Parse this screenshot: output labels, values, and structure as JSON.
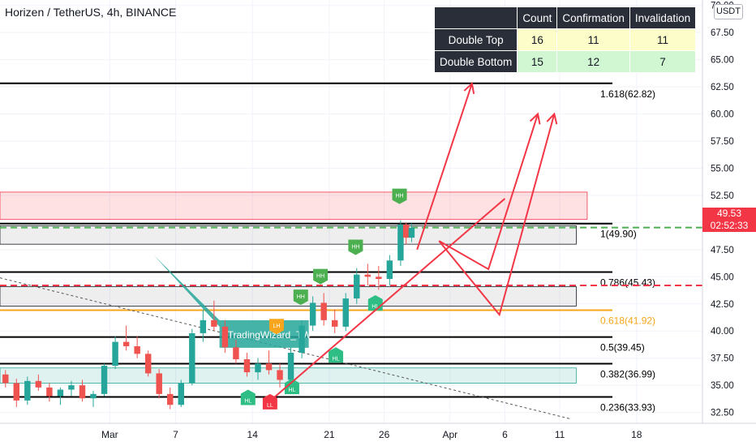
{
  "header": {
    "title": "Horizen / TetherUS, 4h, BINANCE"
  },
  "currency_badge": "USDT",
  "stats_table": {
    "headers": [
      "",
      "Count",
      "Confirmation",
      "Invalidation"
    ],
    "rows": [
      {
        "label": "Double Top",
        "count": "16",
        "confirmation": "11",
        "invalidation": "11"
      },
      {
        "label": "Double Bottom",
        "count": "15",
        "confirmation": "12",
        "invalidation": "7"
      }
    ]
  },
  "last_price": {
    "price": "49.53",
    "countdown": "02:52:33"
  },
  "watermark": "TradingWizard_TW",
  "chart_data": {
    "type": "candlestick",
    "title": "Horizen / TetherUS, 4h, BINANCE",
    "y_range": [
      31.5,
      70.5
    ],
    "y_ticks": [
      "32.50",
      "35.00",
      "37.50",
      "40.00",
      "42.50",
      "45.00",
      "47.50",
      "50.00",
      "52.50",
      "55.00",
      "57.50",
      "60.00",
      "62.50",
      "65.00",
      "67.50",
      "70.00"
    ],
    "x_ticks": [
      {
        "label": "Mar",
        "day": 0
      },
      {
        "label": "7",
        "day": 6
      },
      {
        "label": "14",
        "day": 13
      },
      {
        "label": "21",
        "day": 20
      },
      {
        "label": "26",
        "day": 25
      },
      {
        "label": "Apr",
        "day": 31
      },
      {
        "label": "6",
        "day": 36
      },
      {
        "label": "11",
        "day": 41
      },
      {
        "label": "18",
        "day": 48
      }
    ],
    "x_range_days": [
      -10,
      54
    ],
    "fib_levels": [
      {
        "label": "1(49.90)",
        "value": 49.9,
        "color": "#000000"
      },
      {
        "label": "0.786(45.43)",
        "value": 45.43,
        "color": "#000000"
      },
      {
        "label": "0.618(41.92)",
        "value": 41.92,
        "color": "#f7a51c"
      },
      {
        "label": "0.5(39.45)",
        "value": 39.45,
        "color": "#000000"
      },
      {
        "label": "0.382(36.99)",
        "value": 36.99,
        "color": "#000000"
      },
      {
        "label": "0.236(33.93)",
        "value": 33.93,
        "color": "#000000"
      },
      {
        "label": "1.618(62.82)",
        "value": 62.82,
        "color": "#000000"
      }
    ],
    "zones": [
      {
        "name": "resistance",
        "from": 50.3,
        "to": 52.8,
        "x_from": -10,
        "x_to": 43.5,
        "fill": "rgba(242,54,69,0.15)",
        "stroke": "#f23645"
      },
      {
        "name": "supply",
        "from": 48.0,
        "to": 49.7,
        "x_from": -10,
        "x_to": 42.5,
        "fill": "rgba(120,123,134,0.13)",
        "stroke": "#131722"
      },
      {
        "name": "mid",
        "from": 42.3,
        "to": 44.1,
        "x_from": -10,
        "x_to": 42.5,
        "fill": "rgba(120,123,134,0.13)",
        "stroke": "#131722"
      },
      {
        "name": "demand",
        "from": 35.2,
        "to": 36.6,
        "x_from": -10,
        "x_to": 42.5,
        "fill": "rgba(38,166,154,0.15)",
        "stroke": "#26a69a"
      }
    ],
    "current_price": 49.53,
    "entry_line": 44.2,
    "candles": [
      [
        -9.5,
        36.0,
        36.4,
        34.8,
        35.2
      ],
      [
        -8.5,
        35.2,
        35.6,
        33.0,
        33.6
      ],
      [
        -7.5,
        33.6,
        35.8,
        33.2,
        35.4
      ],
      [
        -6.5,
        35.4,
        36.0,
        34.5,
        34.8
      ],
      [
        -5.5,
        34.8,
        35.2,
        33.5,
        34.0
      ],
      [
        -4.5,
        34.0,
        34.8,
        33.2,
        34.6
      ],
      [
        -3.5,
        34.6,
        35.4,
        34.0,
        35.0
      ],
      [
        -2.5,
        35.0,
        35.5,
        33.5,
        33.8
      ],
      [
        -1.5,
        33.8,
        34.5,
        33.0,
        34.2
      ],
      [
        -0.5,
        34.2,
        37.0,
        34.0,
        36.8
      ],
      [
        0.5,
        36.8,
        39.5,
        36.5,
        39.0
      ],
      [
        1.5,
        39.0,
        40.5,
        38.2,
        38.6
      ],
      [
        2.5,
        38.6,
        39.5,
        37.5,
        37.9
      ],
      [
        3.5,
        37.9,
        38.2,
        35.8,
        36.1
      ],
      [
        4.5,
        36.1,
        36.5,
        33.8,
        34.2
      ],
      [
        5.5,
        34.2,
        34.8,
        32.8,
        33.2
      ],
      [
        6.5,
        33.2,
        35.5,
        33.0,
        35.2
      ],
      [
        7.5,
        35.2,
        40.2,
        35.0,
        39.8
      ],
      [
        8.5,
        39.8,
        42.0,
        39.0,
        41.0
      ],
      [
        9.5,
        41.0,
        42.8,
        40.0,
        40.4
      ],
      [
        10.5,
        40.4,
        41.0,
        38.0,
        38.5
      ],
      [
        11.5,
        38.5,
        39.2,
        37.0,
        37.4
      ],
      [
        12.5,
        37.4,
        38.0,
        35.8,
        36.2
      ],
      [
        13.5,
        36.2,
        37.5,
        35.5,
        37.0
      ],
      [
        14.5,
        37.0,
        38.2,
        36.0,
        36.4
      ],
      [
        15.5,
        36.4,
        37.0,
        34.8,
        35.5
      ],
      [
        16.5,
        35.5,
        38.5,
        35.2,
        38.0
      ],
      [
        17.5,
        38.0,
        41.0,
        37.5,
        40.5
      ],
      [
        18.5,
        40.5,
        43.2,
        40.0,
        42.6
      ],
      [
        19.5,
        42.6,
        43.5,
        40.5,
        41.0
      ],
      [
        20.5,
        41.0,
        42.0,
        39.8,
        40.4
      ],
      [
        21.5,
        40.4,
        43.5,
        40.0,
        43.0
      ],
      [
        22.5,
        43.0,
        45.8,
        42.5,
        45.2
      ],
      [
        23.5,
        45.2,
        46.2,
        44.2,
        45.0
      ],
      [
        24.5,
        45.0,
        46.0,
        43.8,
        44.8
      ],
      [
        25.5,
        44.8,
        47.0,
        44.2,
        46.5
      ],
      [
        26.5,
        46.5,
        50.2,
        46.0,
        49.8
      ],
      [
        27.0,
        49.8,
        50.0,
        48.0,
        48.6
      ],
      [
        27.5,
        48.6,
        49.9,
        48.2,
        49.53
      ]
    ],
    "markers": [
      {
        "label": "HL",
        "day": 12.6,
        "price": 34.6,
        "dir": "below",
        "color": "#2ebd85"
      },
      {
        "label": "LL",
        "day": 14.6,
        "price": 34.2,
        "dir": "below",
        "color": "#f23645"
      },
      {
        "label": "HL",
        "day": 16.6,
        "price": 35.6,
        "dir": "below",
        "color": "#2ebd85"
      },
      {
        "label": "LH",
        "day": 15.2,
        "price": 39.7,
        "dir": "above",
        "color": "#f7a51c"
      },
      {
        "label": "HH",
        "day": 17.4,
        "price": 42.4,
        "dir": "above",
        "color": "#4caf50"
      },
      {
        "label": "HH",
        "day": 19.2,
        "price": 44.3,
        "dir": "above",
        "color": "#4caf50"
      },
      {
        "label": "HL",
        "day": 20.6,
        "price": 38.5,
        "dir": "below",
        "color": "#2ebd85"
      },
      {
        "label": "HH",
        "day": 22.4,
        "price": 47.0,
        "dir": "above",
        "color": "#4caf50"
      },
      {
        "label": "HL",
        "day": 24.2,
        "price": 43.3,
        "dir": "below",
        "color": "#2ebd85"
      },
      {
        "label": "HH",
        "day": 26.4,
        "price": 51.7,
        "dir": "above",
        "color": "#4caf50"
      }
    ],
    "trendline": {
      "from": [
        15,
        33.9
      ],
      "to": [
        36,
        52.2
      ],
      "color": "#f23645"
    },
    "dashed_trend": {
      "from": [
        -10,
        44.9
      ],
      "to": [
        42,
        31.9
      ],
      "color": "#555555"
    },
    "projections": [
      [
        [
          28.0,
          47.5
        ],
        [
          33.0,
          62.8
        ]
      ],
      [
        [
          30.0,
          48.3
        ],
        [
          34.5,
          45.7
        ],
        [
          39.0,
          60.0
        ]
      ],
      [
        [
          30.0,
          48.3
        ],
        [
          35.5,
          41.5
        ],
        [
          40.5,
          60.0
        ]
      ]
    ],
    "projection_color": "#f23645",
    "callout": {
      "anchor": [
        4.0,
        47.0
      ],
      "tip": [
        10.0,
        41.0
      ]
    }
  }
}
